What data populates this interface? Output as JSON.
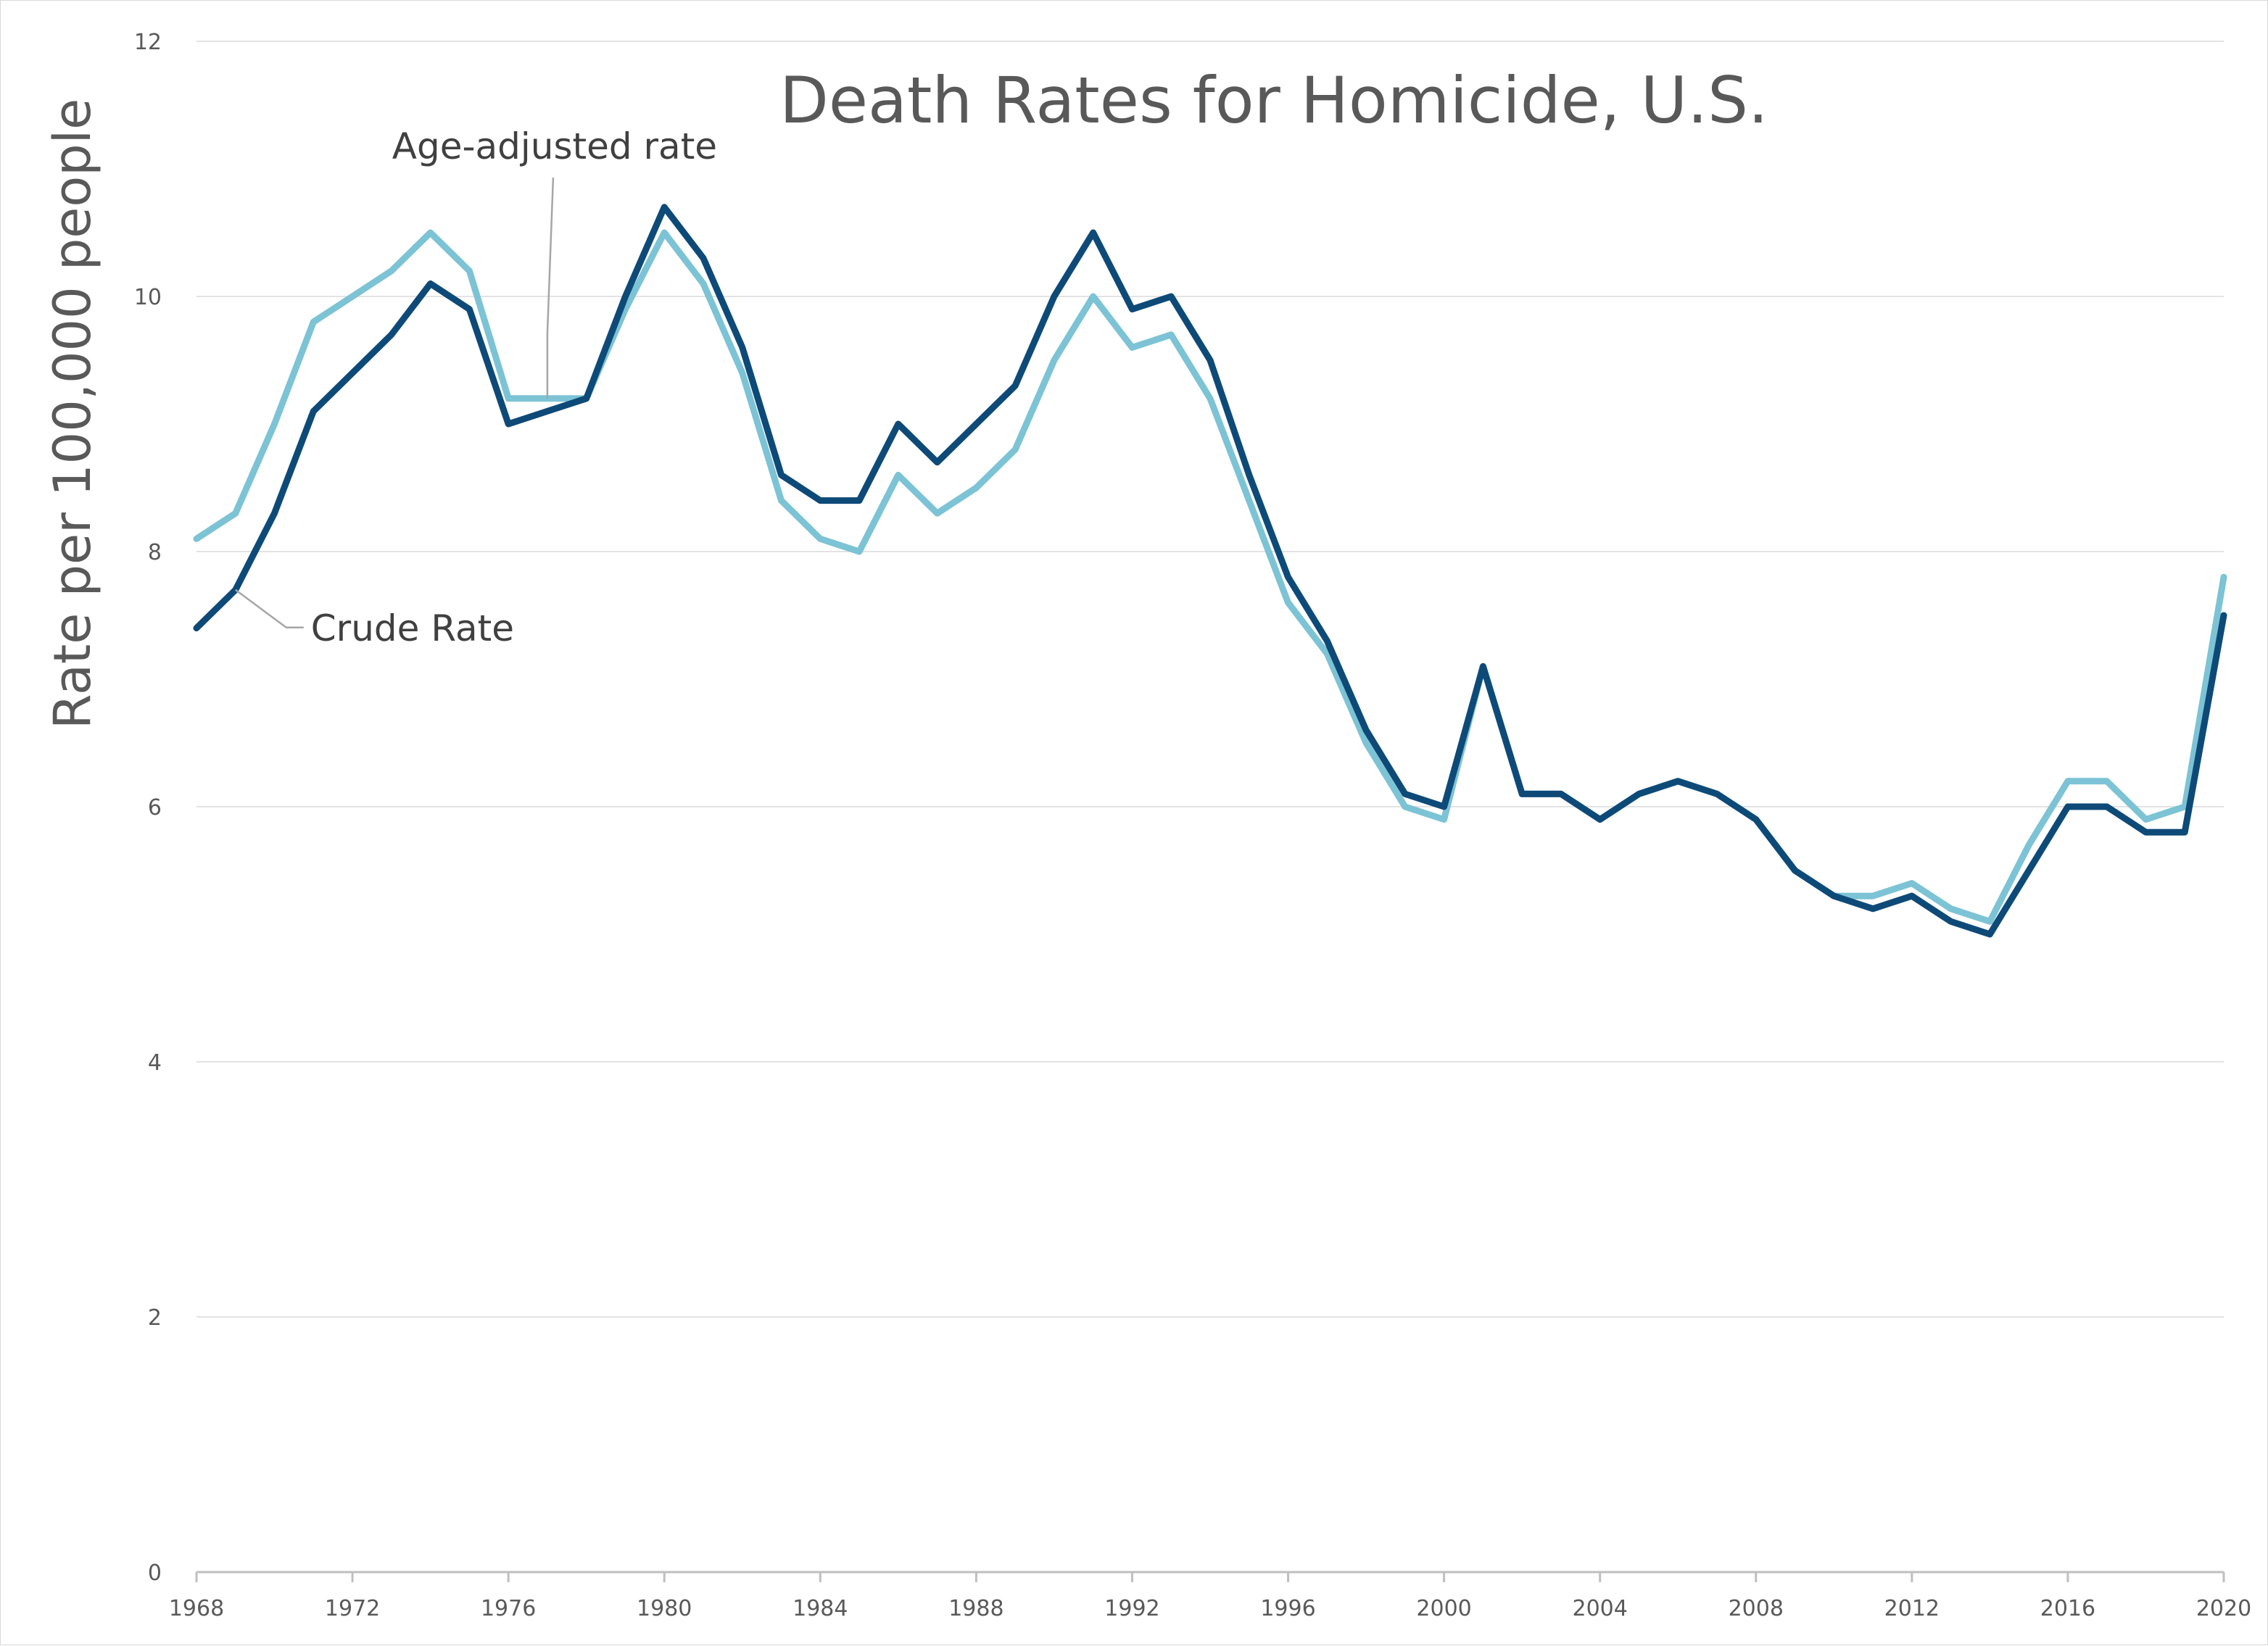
{
  "chart_data": {
    "type": "line",
    "title": "Death Rates for Homicide, U.S.",
    "xlabel": "",
    "ylabel": "Rate per 100,000 people",
    "xlim": [
      1968,
      2020
    ],
    "ylim": [
      0,
      12
    ],
    "x_ticks": [
      1968,
      1972,
      1976,
      1980,
      1984,
      1988,
      1992,
      1996,
      2000,
      2004,
      2008,
      2012,
      2016,
      2020
    ],
    "y_ticks": [
      0,
      2,
      4,
      6,
      8,
      10,
      12
    ],
    "grid": "horizontal",
    "legend": "none",
    "x": [
      1968,
      1969,
      1970,
      1971,
      1972,
      1973,
      1974,
      1975,
      1976,
      1977,
      1978,
      1979,
      1980,
      1981,
      1982,
      1983,
      1984,
      1985,
      1986,
      1987,
      1988,
      1989,
      1990,
      1991,
      1992,
      1993,
      1994,
      1995,
      1996,
      1997,
      1998,
      1999,
      2000,
      2001,
      2002,
      2003,
      2004,
      2005,
      2006,
      2007,
      2008,
      2009,
      2010,
      2011,
      2012,
      2013,
      2014,
      2015,
      2016,
      2017,
      2018,
      2019,
      2020
    ],
    "series": [
      {
        "name": "Crude Rate",
        "color": "#0e4a78",
        "values": [
          7.4,
          7.7,
          8.3,
          9.1,
          9.4,
          9.7,
          10.1,
          9.9,
          9.0,
          9.1,
          9.2,
          10.0,
          10.7,
          10.3,
          9.6,
          8.6,
          8.4,
          8.4,
          9.0,
          8.7,
          9.0,
          9.3,
          10.0,
          10.5,
          9.9,
          10.0,
          9.5,
          8.6,
          7.8,
          7.3,
          6.6,
          6.1,
          6.0,
          7.1,
          6.1,
          6.1,
          5.9,
          6.1,
          6.2,
          6.1,
          5.9,
          5.5,
          5.3,
          5.2,
          5.3,
          5.1,
          5.0,
          5.5,
          6.0,
          6.0,
          5.8,
          5.8,
          7.5
        ]
      },
      {
        "name": "Age-adjusted rate",
        "color": "#7cc3d5",
        "values": [
          8.1,
          8.3,
          9.0,
          9.8,
          10.0,
          10.2,
          10.5,
          10.2,
          9.2,
          9.2,
          9.2,
          9.9,
          10.5,
          10.1,
          9.4,
          8.4,
          8.1,
          8.0,
          8.6,
          8.3,
          8.5,
          8.8,
          9.5,
          10.0,
          9.6,
          9.7,
          9.2,
          8.4,
          7.6,
          7.2,
          6.5,
          6.0,
          5.9,
          7.1,
          6.1,
          6.1,
          5.9,
          6.1,
          6.2,
          6.1,
          5.9,
          5.5,
          5.3,
          5.3,
          5.4,
          5.2,
          5.1,
          5.7,
          6.2,
          6.2,
          5.9,
          6.0,
          7.8
        ]
      }
    ],
    "annotations": [
      {
        "text": "Age-adjusted rate",
        "series": "Age-adjusted rate",
        "x": 1977,
        "y": 9.2
      },
      {
        "text": "Crude Rate",
        "series": "Crude Rate",
        "x": 1969,
        "y": 7.7
      }
    ]
  }
}
